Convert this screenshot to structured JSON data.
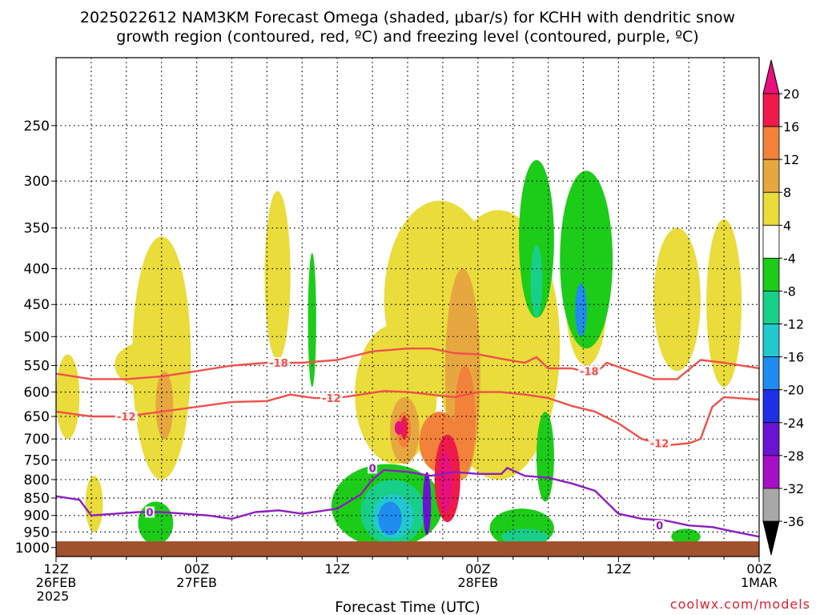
{
  "title_lines": [
    "2025022612 NAM3KM Forecast Omega (shaded, μbar/s) for KCHH with dendritic snow",
    "growth region (contoured, red, ºC) and freezing level (contoured, purple, ºC)"
  ],
  "watermark": "coolwx.com/models",
  "chart_data": {
    "type": "heatmap",
    "title": "2025022612 NAM3KM Forecast Omega (shaded, μbar/s) for KCHH with dendritic snow growth region (contoured, red, ºC) and freezing level (contoured, purple, ºC)",
    "xlabel": "Forecast Time (UTC)",
    "ylabel": "",
    "x_range_hours": [
      0,
      60
    ],
    "x_ticks": [
      {
        "hour": 0,
        "lines": [
          "12Z",
          "26FEB",
          "2025"
        ]
      },
      {
        "hour": 12,
        "lines": [
          "00Z",
          "27FEB"
        ]
      },
      {
        "hour": 24,
        "lines": [
          "12Z"
        ]
      },
      {
        "hour": 36,
        "lines": [
          "00Z",
          "28FEB"
        ]
      },
      {
        "hour": 48,
        "lines": [
          "12Z"
        ]
      },
      {
        "hour": 60,
        "lines": [
          "00Z",
          "1MAR"
        ]
      }
    ],
    "y_scale": "log-pressure (hPa)",
    "y_range_hpa": [
      1030,
      200
    ],
    "y_ticks": [
      250,
      300,
      350,
      400,
      450,
      500,
      550,
      600,
      650,
      700,
      750,
      800,
      850,
      900,
      950,
      1000
    ],
    "grid": true,
    "colorbar": {
      "units": "μbar/s",
      "labels": [
        "20",
        "16",
        "12",
        "8",
        "4",
        "-4",
        "-8",
        "-12",
        "-16",
        "-20",
        "-24",
        "-28",
        "-32",
        "-36"
      ],
      "bins": [
        {
          "range": [
            16,
            20
          ],
          "color": "#ee1b4a"
        },
        {
          "range": [
            12,
            16
          ],
          "color": "#f2813a"
        },
        {
          "range": [
            8,
            12
          ],
          "color": "#e7a740"
        },
        {
          "range": [
            4,
            8
          ],
          "color": "#e9dc3b"
        },
        {
          "range": [
            -4,
            4
          ],
          "color": "#ffffff"
        },
        {
          "range": [
            -8,
            -4
          ],
          "color": "#1ccc19"
        },
        {
          "range": [
            -12,
            -8
          ],
          "color": "#18cf8a"
        },
        {
          "range": [
            -16,
            -12
          ],
          "color": "#21c9cf"
        },
        {
          "range": [
            -20,
            -16
          ],
          "color": "#1f8cf0"
        },
        {
          "range": [
            -24,
            -20
          ],
          "color": "#1e30e6"
        },
        {
          "range": [
            -28,
            -24
          ],
          "color": "#6a13d0"
        },
        {
          "range": [
            -32,
            -28
          ],
          "color": "#a70fc7"
        },
        {
          "range": [
            -36,
            -32
          ],
          "color": "#a8a8a8"
        }
      ],
      "over_color": "#e8107e",
      "under_color": "#000000"
    },
    "omega_regions": [
      {
        "color": "#e9dc3b",
        "t": [
          0,
          2
        ],
        "p": [
          530,
          700
        ]
      },
      {
        "color": "#e9dc3b",
        "t": [
          5,
          10
        ],
        "p": [
          510,
          590
        ]
      },
      {
        "color": "#e9dc3b",
        "t": [
          6.5,
          11.5
        ],
        "p": [
          360,
          800
        ]
      },
      {
        "color": "#e7a740",
        "t": [
          8.5,
          10
        ],
        "p": [
          560,
          700
        ]
      },
      {
        "color": "#e9dc3b",
        "t": [
          17.8,
          20
        ],
        "p": [
          310,
          540
        ]
      },
      {
        "color": "#e9dc3b",
        "t": [
          2.5,
          4
        ],
        "p": [
          790,
          950
        ]
      },
      {
        "color": "#e9dc3b",
        "t": [
          25.5,
          32.5
        ],
        "p": [
          480,
          760
        ]
      },
      {
        "color": "#e9dc3b",
        "t": [
          28,
          37.5
        ],
        "p": [
          320,
          610
        ]
      },
      {
        "color": "#e9dc3b",
        "t": [
          32.5,
          43
        ],
        "p": [
          330,
          800
        ]
      },
      {
        "color": "#e7a740",
        "t": [
          33.2,
          36.2
        ],
        "p": [
          400,
          800
        ]
      },
      {
        "color": "#f2813a",
        "t": [
          34,
          35.8
        ],
        "p": [
          550,
          780
        ]
      },
      {
        "color": "#e7a740",
        "t": [
          28.5,
          31
        ],
        "p": [
          610,
          760
        ]
      },
      {
        "color": "#f2813a",
        "t": [
          29.1,
          30.3
        ],
        "p": [
          640,
          720
        ]
      },
      {
        "color": "#ee1b4a",
        "t": [
          29.4,
          30
        ],
        "p": [
          650,
          700
        ]
      },
      {
        "color": "#f2813a",
        "t": [
          31,
          34.5
        ],
        "p": [
          640,
          780
        ]
      },
      {
        "color": "#e9dc3b",
        "t": [
          43.5,
          47
        ],
        "p": [
          360,
          550
        ]
      },
      {
        "color": "#e9dc3b",
        "t": [
          51,
          55
        ],
        "p": [
          350,
          560
        ]
      },
      {
        "color": "#e9dc3b",
        "t": [
          55.5,
          58.5
        ],
        "p": [
          340,
          590
        ]
      },
      {
        "color": "#1ccc19",
        "t": [
          21.5,
          22.2
        ],
        "p": [
          380,
          590
        ]
      },
      {
        "color": "#1ccc19",
        "t": [
          39.5,
          42.5
        ],
        "p": [
          280,
          470
        ]
      },
      {
        "color": "#18cf8a",
        "t": [
          40.5,
          41.5
        ],
        "p": [
          370,
          470
        ]
      },
      {
        "color": "#1ccc19",
        "t": [
          43,
          47.5
        ],
        "p": [
          290,
          520
        ]
      },
      {
        "color": "#1f8cf0",
        "t": [
          44.3,
          45.3
        ],
        "p": [
          420,
          500
        ]
      },
      {
        "color": "#1ccc19",
        "t": [
          41,
          42.5
        ],
        "p": [
          640,
          860
        ]
      },
      {
        "color": "#1ccc19",
        "t": [
          23.5,
          33
        ],
        "p": [
          760,
          1000
        ]
      },
      {
        "color": "#18cf8a",
        "t": [
          26,
          31.5
        ],
        "p": [
          800,
          990
        ]
      },
      {
        "color": "#21c9cf",
        "t": [
          27,
          30.5
        ],
        "p": [
          840,
          970
        ]
      },
      {
        "color": "#1f8cf0",
        "t": [
          27.5,
          29.5
        ],
        "p": [
          860,
          960
        ]
      },
      {
        "color": "#1ccc19",
        "t": [
          37,
          42.5
        ],
        "p": [
          880,
          1000
        ]
      },
      {
        "color": "#18cf8a",
        "t": [
          38,
          42
        ],
        "p": [
          940,
          990
        ]
      },
      {
        "color": "#1ccc19",
        "t": [
          7,
          10
        ],
        "p": [
          860,
          990
        ]
      },
      {
        "color": "#1ccc19",
        "t": [
          52.5,
          55
        ],
        "p": [
          940,
          990
        ]
      },
      {
        "color": "#ee1b4a",
        "t": [
          32.3,
          34.5
        ],
        "p": [
          690,
          920
        ]
      },
      {
        "color": "#e8107e",
        "t": [
          32.7,
          33.8
        ],
        "p": [
          730,
          890
        ]
      },
      {
        "color": "#6a13d0",
        "t": [
          31.3,
          32
        ],
        "p": [
          780,
          960
        ]
      },
      {
        "color": "#e8107e",
        "t": [
          28.9,
          29.6
        ],
        "p": [
          660,
          690
        ]
      }
    ],
    "contours": [
      {
        "name": "-18",
        "color": "#f0504c",
        "units": "ºC",
        "points": [
          [
            0,
            565
          ],
          [
            3,
            575
          ],
          [
            6,
            575
          ],
          [
            9,
            570
          ],
          [
            12,
            560
          ],
          [
            15,
            550
          ],
          [
            18,
            545
          ],
          [
            21,
            545
          ],
          [
            24,
            540
          ],
          [
            27,
            525
          ],
          [
            30,
            520
          ],
          [
            32,
            520
          ],
          [
            34,
            528
          ],
          [
            36,
            530
          ],
          [
            38,
            538
          ],
          [
            40,
            545
          ],
          [
            41,
            535
          ],
          [
            42,
            555
          ],
          [
            44,
            555
          ],
          [
            46,
            565
          ],
          [
            47,
            545
          ],
          [
            49,
            560
          ],
          [
            51,
            575
          ],
          [
            53,
            575
          ],
          [
            55,
            540
          ],
          [
            57,
            545
          ],
          [
            60,
            555
          ]
        ],
        "labels": [
          {
            "t": 19,
            "p": 545
          },
          {
            "t": 45.5,
            "p": 560
          }
        ]
      },
      {
        "name": "-12",
        "color": "#f0504c",
        "units": "ºC",
        "points": [
          [
            0,
            640
          ],
          [
            3,
            650
          ],
          [
            6,
            650
          ],
          [
            9,
            640
          ],
          [
            12,
            630
          ],
          [
            15,
            620
          ],
          [
            18,
            618
          ],
          [
            20,
            605
          ],
          [
            22,
            612
          ],
          [
            24,
            612
          ],
          [
            26,
            605
          ],
          [
            28,
            598
          ],
          [
            30,
            600
          ],
          [
            32,
            605
          ],
          [
            34,
            610
          ],
          [
            36,
            600
          ],
          [
            38,
            600
          ],
          [
            40,
            605
          ],
          [
            42,
            612
          ],
          [
            44,
            628
          ],
          [
            46,
            640
          ],
          [
            48,
            665
          ],
          [
            50,
            700
          ],
          [
            52,
            715
          ],
          [
            54,
            710
          ],
          [
            55,
            700
          ],
          [
            56,
            630
          ],
          [
            57,
            610
          ],
          [
            60,
            615
          ]
        ],
        "labels": [
          {
            "t": 23.5,
            "p": 612
          },
          {
            "t": 6,
            "p": 650
          },
          {
            "t": 51.5,
            "p": 710
          }
        ]
      },
      {
        "name": "0",
        "color": "#8d1ec0",
        "units": "ºC",
        "points": [
          [
            0,
            845
          ],
          [
            2,
            855
          ],
          [
            3,
            900
          ],
          [
            5,
            895
          ],
          [
            7,
            890
          ],
          [
            9,
            890
          ],
          [
            11,
            895
          ],
          [
            13,
            900
          ],
          [
            15,
            910
          ],
          [
            17,
            890
          ],
          [
            19,
            885
          ],
          [
            21,
            895
          ],
          [
            23,
            885
          ],
          [
            24,
            880
          ],
          [
            25,
            860
          ],
          [
            26,
            840
          ],
          [
            27,
            800
          ],
          [
            28,
            775
          ],
          [
            30,
            780
          ],
          [
            32,
            790
          ],
          [
            34,
            780
          ],
          [
            36,
            785
          ],
          [
            38,
            785
          ],
          [
            38.5,
            770
          ],
          [
            40,
            790
          ],
          [
            42,
            795
          ],
          [
            44,
            810
          ],
          [
            46,
            830
          ],
          [
            48,
            895
          ],
          [
            50,
            910
          ],
          [
            52,
            915
          ],
          [
            54,
            930
          ],
          [
            56,
            935
          ],
          [
            58,
            950
          ],
          [
            60,
            965
          ]
        ],
        "labels": [
          {
            "t": 8,
            "p": 890
          },
          {
            "t": 27,
            "p": 770
          },
          {
            "t": 51.5,
            "p": 930
          }
        ]
      }
    ]
  }
}
